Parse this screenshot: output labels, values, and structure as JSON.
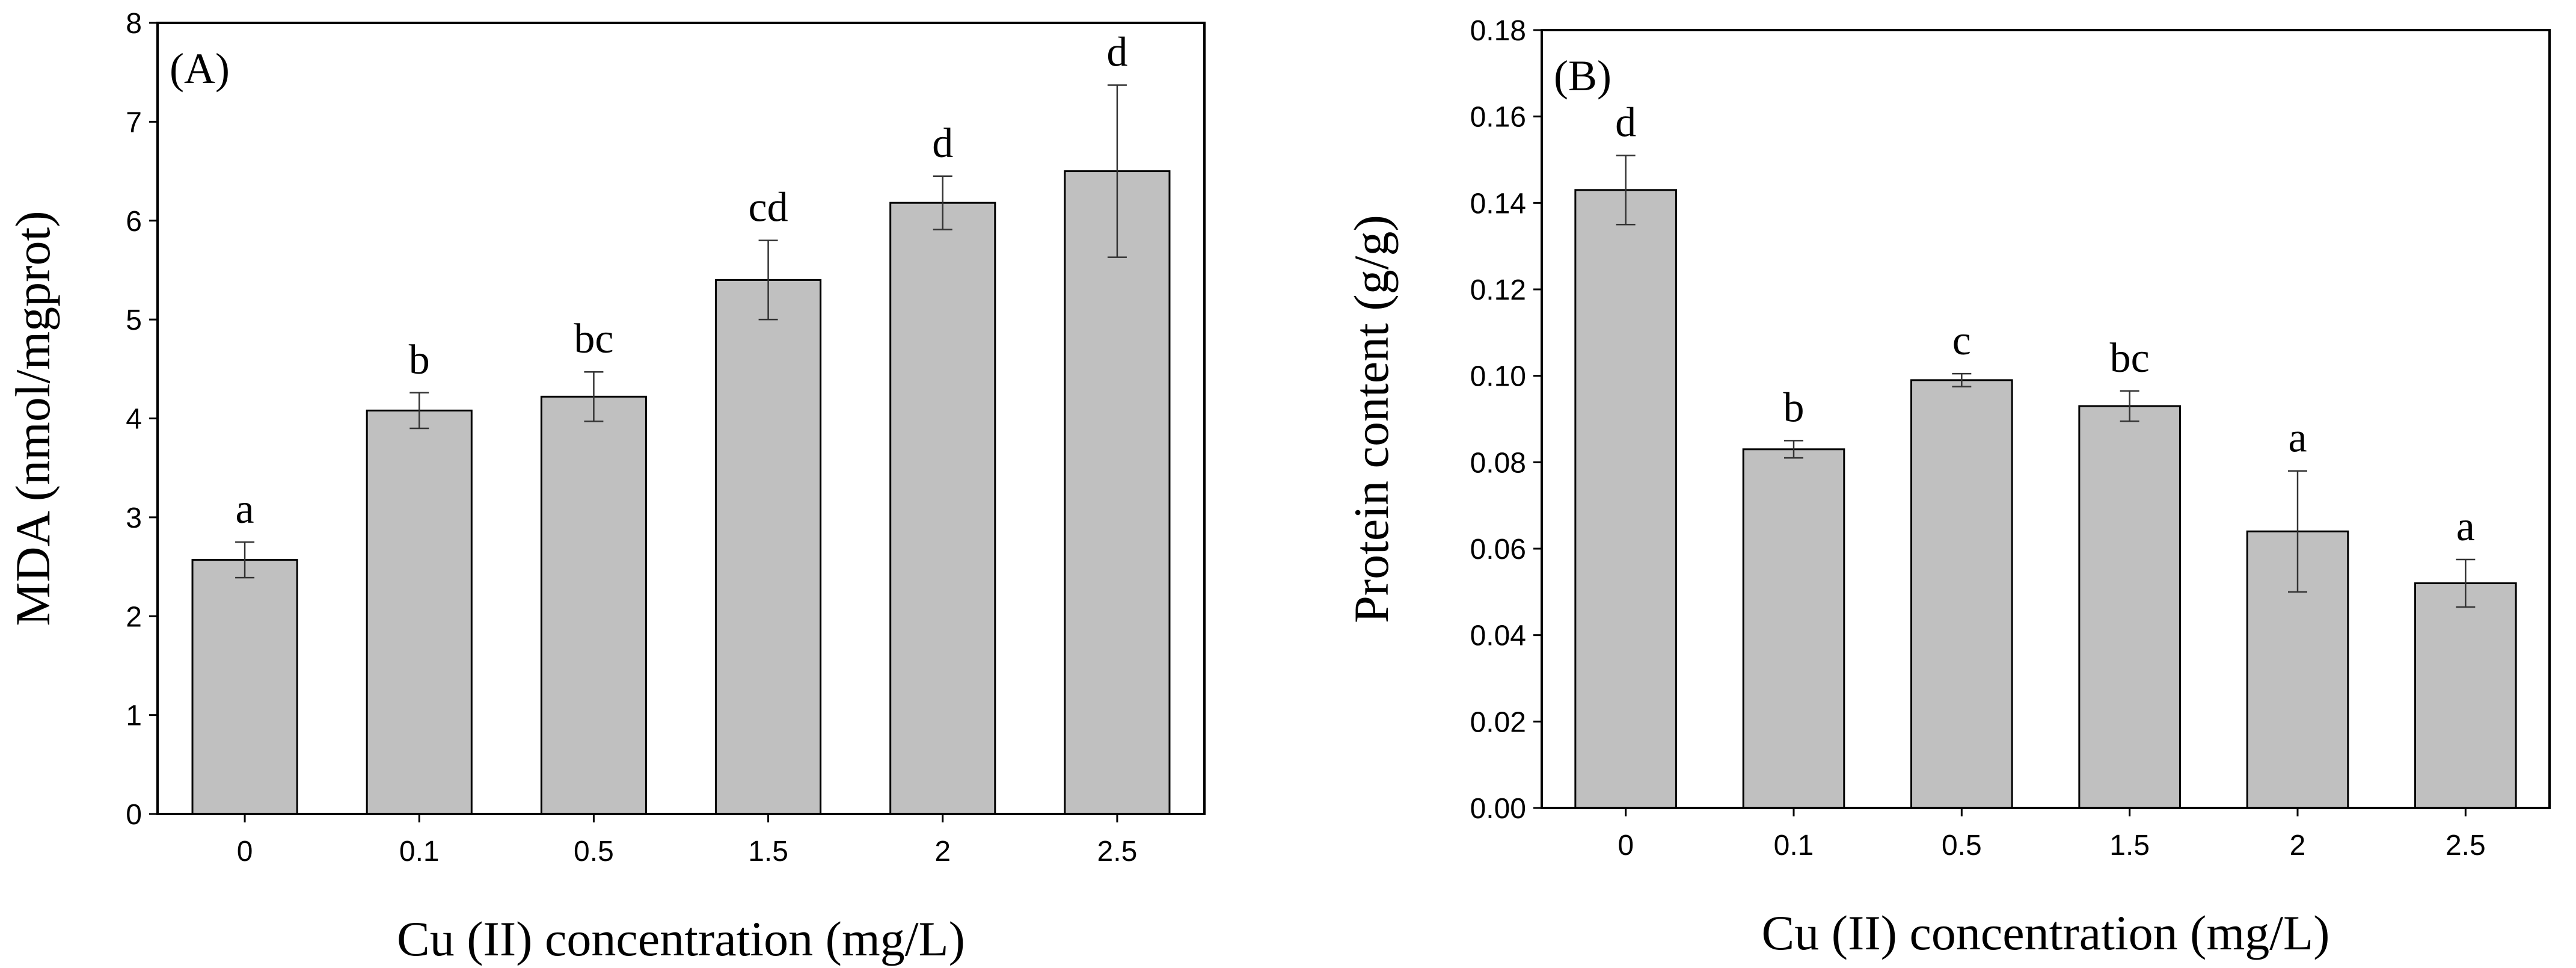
{
  "chart_data": [
    {
      "type": "bar",
      "panel_label": "(A)",
      "categories": [
        "0",
        "0.1",
        "0.5",
        "1.5",
        "2",
        "2.5"
      ],
      "values": [
        2.57,
        4.08,
        4.22,
        5.4,
        6.18,
        6.5
      ],
      "errors": [
        0.18,
        0.18,
        0.25,
        0.4,
        0.27,
        0.87
      ],
      "significance": [
        "a",
        "b",
        "bc",
        "cd",
        "d",
        "d"
      ],
      "xlabel": "Cu (II) concentration (mg/L)",
      "ylabel": "MDA (nmol/mgprot)",
      "ylim": [
        0,
        8
      ],
      "yticks": [
        "0",
        "1",
        "2",
        "3",
        "4",
        "5",
        "6",
        "7",
        "8"
      ]
    },
    {
      "type": "bar",
      "panel_label": "(B)",
      "categories": [
        "0",
        "0.1",
        "0.5",
        "1.5",
        "2",
        "2.5"
      ],
      "values": [
        0.143,
        0.083,
        0.099,
        0.093,
        0.064,
        0.052
      ],
      "errors": [
        0.008,
        0.002,
        0.0015,
        0.0035,
        0.014,
        0.0055
      ],
      "significance": [
        "d",
        "b",
        "c",
        "bc",
        "a",
        "a"
      ],
      "xlabel": "Cu (II) concentration (mg/L)",
      "ylabel": "Protein content (g/g)",
      "ylim": [
        0,
        0.18
      ],
      "yticks": [
        "0.00",
        "0.02",
        "0.04",
        "0.06",
        "0.08",
        "0.10",
        "0.12",
        "0.14",
        "0.16",
        "0.18"
      ]
    }
  ]
}
